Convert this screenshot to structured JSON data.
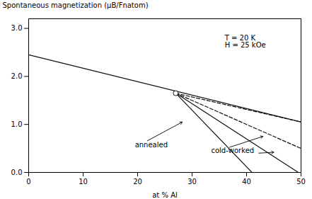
{
  "chart_data": {
    "type": "line",
    "xlabel": "at % Al",
    "ylabel": "Spontaneous magnetization (μB/Fnatom)",
    "xlim": [
      0,
      50
    ],
    "ylim": [
      0,
      3.2
    ],
    "xticks": [
      0,
      10,
      20,
      30,
      40,
      50
    ],
    "yticks": [
      0,
      1,
      2,
      3
    ],
    "grid": false,
    "series": [
      {
        "x": [
          0,
          50
        ],
        "values": [
          2.45,
          1.05
        ],
        "color": "#111111",
        "line_style": "solid"
      },
      {
        "x": [
          27,
          50
        ],
        "values": [
          1.65,
          1.05
        ],
        "color": "#111111",
        "line_style": "dashed"
      },
      {
        "x": [
          27,
          50
        ],
        "values": [
          1.65,
          0.5
        ],
        "color": "#111111",
        "line_style": "dashed"
      },
      {
        "x": [
          27,
          49.5
        ],
        "values": [
          1.65,
          0.0
        ],
        "color": "#111111",
        "line_style": "solid"
      },
      {
        "x": [
          27,
          41.0
        ],
        "values": [
          1.65,
          0.0
        ],
        "color": "#111111",
        "line_style": "solid"
      },
      {
        "type": "scatter",
        "x": [
          27
        ],
        "values": [
          1.65
        ],
        "color": "#111111",
        "marker": "circle"
      }
    ],
    "annotations": [
      {
        "text": "annealed",
        "x": 19.5,
        "y": 0.52,
        "arrows": [
          {
            "from": [
              19.5,
              0.52
            ],
            "to": [
              28.2,
              1.05
            ]
          }
        ]
      },
      {
        "text": "cold-worked",
        "x": 33.5,
        "y": 0.4,
        "arrows": [
          {
            "from": [
              33.5,
              0.4
            ],
            "to": [
              43.0,
              0.75
            ]
          },
          {
            "from": [
              42.0,
              0.4
            ],
            "to": [
              45.0,
              0.42
            ]
          }
        ]
      },
      {
        "text": "T = 20 K\nH = 25 kOe",
        "x": 36,
        "y": 2.85
      }
    ]
  }
}
